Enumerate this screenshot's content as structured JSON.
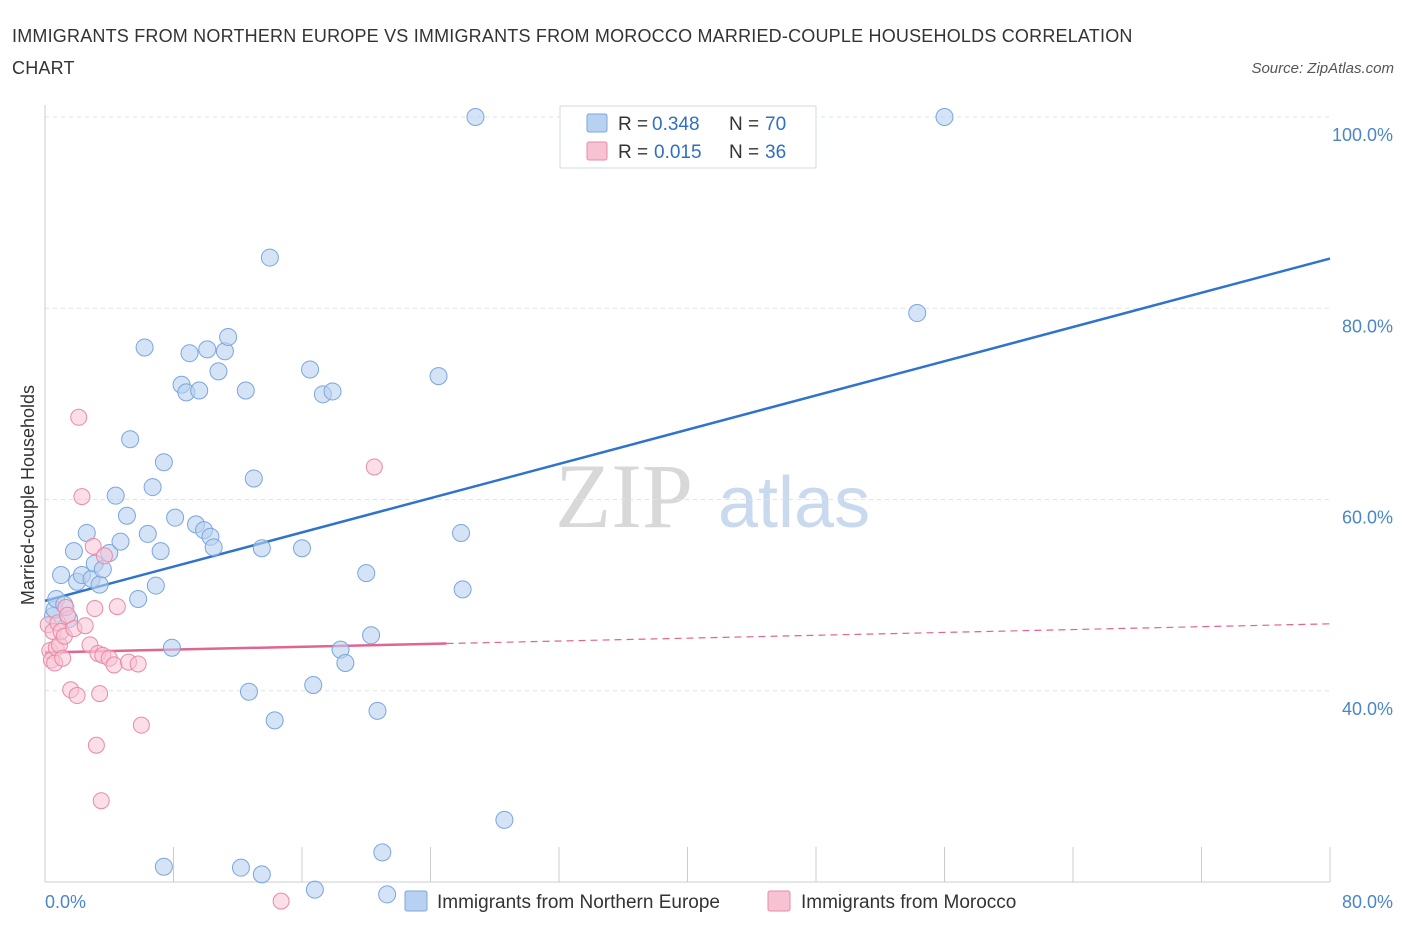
{
  "title": "IMMIGRANTS FROM NORTHERN EUROPE VS IMMIGRANTS FROM MOROCCO MARRIED-COUPLE HOUSEHOLDS CORRELATION CHART",
  "source": "Source: ZipAtlas.com",
  "colors": {
    "blue_fill": "#b9d1f0",
    "blue_stroke": "#7aa6dd",
    "blue_line": "#2f73cc",
    "pink_fill": "#f7c3d3",
    "pink_stroke": "#e88aa8",
    "pink_line": "#e0658f",
    "grid": "#dde3ea",
    "axis_text": "#4a86c8"
  },
  "chart_data": {
    "type": "scatter",
    "xlabel": "",
    "ylabel": "Married-couple Households",
    "xlim": [
      0,
      80
    ],
    "ylim": [
      20,
      100
    ],
    "x_tick_labels": [
      "0.0%",
      "80.0%"
    ],
    "y_tick_labels": [
      "40.0%",
      "60.0%",
      "80.0%",
      "100.0%"
    ],
    "y_tick_values": [
      40,
      60,
      80,
      100
    ],
    "grid": true,
    "legend_position": "top-center",
    "legend": [
      {
        "r_label": "R =",
        "r_value": "0.348",
        "n_label": "N =",
        "n_value": "70"
      },
      {
        "r_label": "R =",
        "r_value": "0.015",
        "n_label": "N =",
        "n_value": "36"
      }
    ],
    "series": [
      {
        "name": "Immigrants from Northern Europe",
        "trend": {
          "x": [
            0,
            80
          ],
          "y": [
            49.4,
            85.2
          ],
          "style": "solid"
        },
        "points": [
          [
            0.5,
            47.8
          ],
          [
            0.6,
            48.5
          ],
          [
            0.7,
            49.6
          ],
          [
            1.0,
            52.1
          ],
          [
            1.2,
            49.0
          ],
          [
            1.5,
            47.5
          ],
          [
            1.8,
            54.6
          ],
          [
            2.0,
            51.4
          ],
          [
            2.3,
            52.1
          ],
          [
            2.6,
            56.5
          ],
          [
            2.9,
            51.7
          ],
          [
            3.1,
            53.3
          ],
          [
            3.4,
            51.1
          ],
          [
            3.6,
            52.7
          ],
          [
            4.0,
            54.4
          ],
          [
            4.4,
            60.4
          ],
          [
            4.7,
            55.6
          ],
          [
            5.1,
            58.3
          ],
          [
            5.3,
            66.3
          ],
          [
            5.8,
            49.6
          ],
          [
            6.2,
            75.9
          ],
          [
            6.4,
            56.4
          ],
          [
            6.7,
            61.3
          ],
          [
            6.9,
            51.0
          ],
          [
            7.2,
            54.6
          ],
          [
            7.4,
            63.9
          ],
          [
            7.9,
            44.5
          ],
          [
            8.1,
            58.1
          ],
          [
            8.5,
            72.0
          ],
          [
            8.8,
            71.2
          ],
          [
            9.0,
            75.3
          ],
          [
            9.4,
            57.4
          ],
          [
            9.6,
            71.4
          ],
          [
            9.9,
            56.8
          ],
          [
            10.1,
            75.7
          ],
          [
            10.3,
            56.1
          ],
          [
            10.5,
            55.0
          ],
          [
            10.8,
            73.4
          ],
          [
            11.2,
            75.5
          ],
          [
            11.4,
            77.0
          ],
          [
            12.5,
            71.4
          ],
          [
            12.7,
            39.9
          ],
          [
            13.0,
            62.2
          ],
          [
            13.5,
            54.9
          ],
          [
            14.0,
            85.3
          ],
          [
            14.3,
            36.9
          ],
          [
            16.0,
            54.9
          ],
          [
            16.5,
            73.6
          ],
          [
            16.7,
            40.6
          ],
          [
            17.3,
            71.0
          ],
          [
            17.9,
            71.3
          ],
          [
            18.4,
            44.3
          ],
          [
            18.7,
            42.9
          ],
          [
            20.0,
            52.3
          ],
          [
            20.3,
            45.8
          ],
          [
            20.7,
            37.9
          ],
          [
            21.0,
            23.1
          ],
          [
            24.5,
            72.9
          ],
          [
            25.9,
            56.5
          ],
          [
            26.0,
            50.6
          ],
          [
            26.8,
            100.0
          ],
          [
            28.6,
            26.5
          ],
          [
            16.8,
            19.2
          ],
          [
            7.4,
            21.6
          ],
          [
            12.2,
            21.5
          ],
          [
            13.5,
            20.8
          ],
          [
            21.3,
            18.7
          ],
          [
            40.0,
            100.0
          ],
          [
            56.0,
            100.0
          ],
          [
            54.3,
            79.5
          ]
        ]
      },
      {
        "name": "Immigrants from Morocco",
        "trend": {
          "x": [
            0,
            80
          ],
          "y": [
            44.0,
            47.0
          ],
          "style": "solid-then-dashed",
          "solid_until_x": 25
        },
        "points": [
          [
            0.2,
            46.9
          ],
          [
            0.3,
            44.2
          ],
          [
            0.4,
            43.2
          ],
          [
            0.5,
            46.2
          ],
          [
            0.6,
            42.9
          ],
          [
            0.7,
            44.5
          ],
          [
            0.8,
            47.1
          ],
          [
            0.9,
            44.8
          ],
          [
            1.0,
            46.2
          ],
          [
            1.1,
            43.4
          ],
          [
            1.2,
            45.7
          ],
          [
            1.3,
            48.7
          ],
          [
            1.4,
            47.9
          ],
          [
            1.6,
            40.1
          ],
          [
            1.8,
            46.5
          ],
          [
            2.0,
            39.5
          ],
          [
            2.1,
            68.6
          ],
          [
            2.3,
            60.3
          ],
          [
            2.5,
            46.8
          ],
          [
            2.8,
            44.8
          ],
          [
            3.0,
            55.1
          ],
          [
            3.1,
            48.6
          ],
          [
            3.2,
            34.3
          ],
          [
            3.3,
            43.9
          ],
          [
            3.4,
            39.7
          ],
          [
            3.5,
            28.5
          ],
          [
            3.6,
            43.7
          ],
          [
            3.7,
            54.1
          ],
          [
            4.0,
            43.4
          ],
          [
            4.3,
            42.7
          ],
          [
            4.5,
            48.8
          ],
          [
            5.2,
            43.0
          ],
          [
            5.8,
            42.8
          ],
          [
            6.0,
            36.4
          ],
          [
            14.7,
            18.0
          ],
          [
            20.5,
            63.4
          ]
        ]
      }
    ]
  }
}
